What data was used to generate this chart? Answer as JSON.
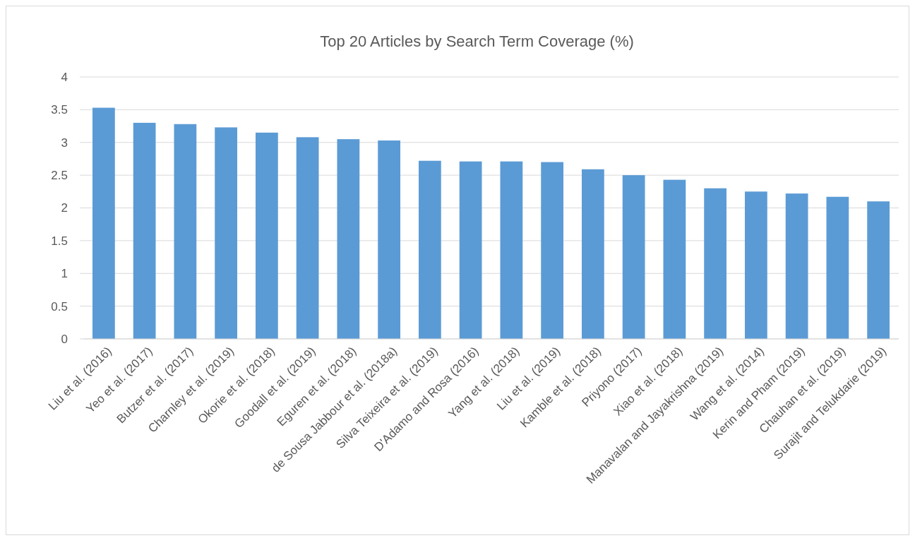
{
  "chart_data": {
    "type": "bar",
    "title": "Top 20 Articles by Search Term Coverage (%)",
    "categories": [
      "Liu et al. (2016)",
      "Yeo et al. (2017)",
      "Butzer et al. (2017)",
      "Charnley et al. (2019)",
      "Okorie et al. (2018)",
      "Goodall et al. (2019)",
      "Eguren et al. (2018)",
      "de Sousa Jabbour et al. (2018a)",
      "Silva Teixeira et al. (2019)",
      "D'Adamo and Rosa (2016)",
      "Yang et al. (2018)",
      "Liu et al. (2019)",
      "Kamble et al. (2018)",
      "Priyono (2017)",
      "Xiao et al. (2018)",
      "Manavalan and Jayakrishna (2019)",
      "Wang et al. (2014)",
      "Kerin and Pham (2019)",
      "Chauhan et al. (2019)",
      "Surajit and Telukdarie (2019)"
    ],
    "values": [
      3.53,
      3.3,
      3.28,
      3.23,
      3.15,
      3.08,
      3.05,
      3.03,
      2.72,
      2.71,
      2.71,
      2.7,
      2.59,
      2.5,
      2.43,
      2.3,
      2.25,
      2.22,
      2.17,
      2.1
    ],
    "color": "#5b9bd5",
    "ylim": [
      0,
      4
    ],
    "yticks": [
      0,
      0.5,
      1,
      1.5,
      2,
      2.5,
      3,
      3.5,
      4
    ],
    "grid": "y"
  }
}
